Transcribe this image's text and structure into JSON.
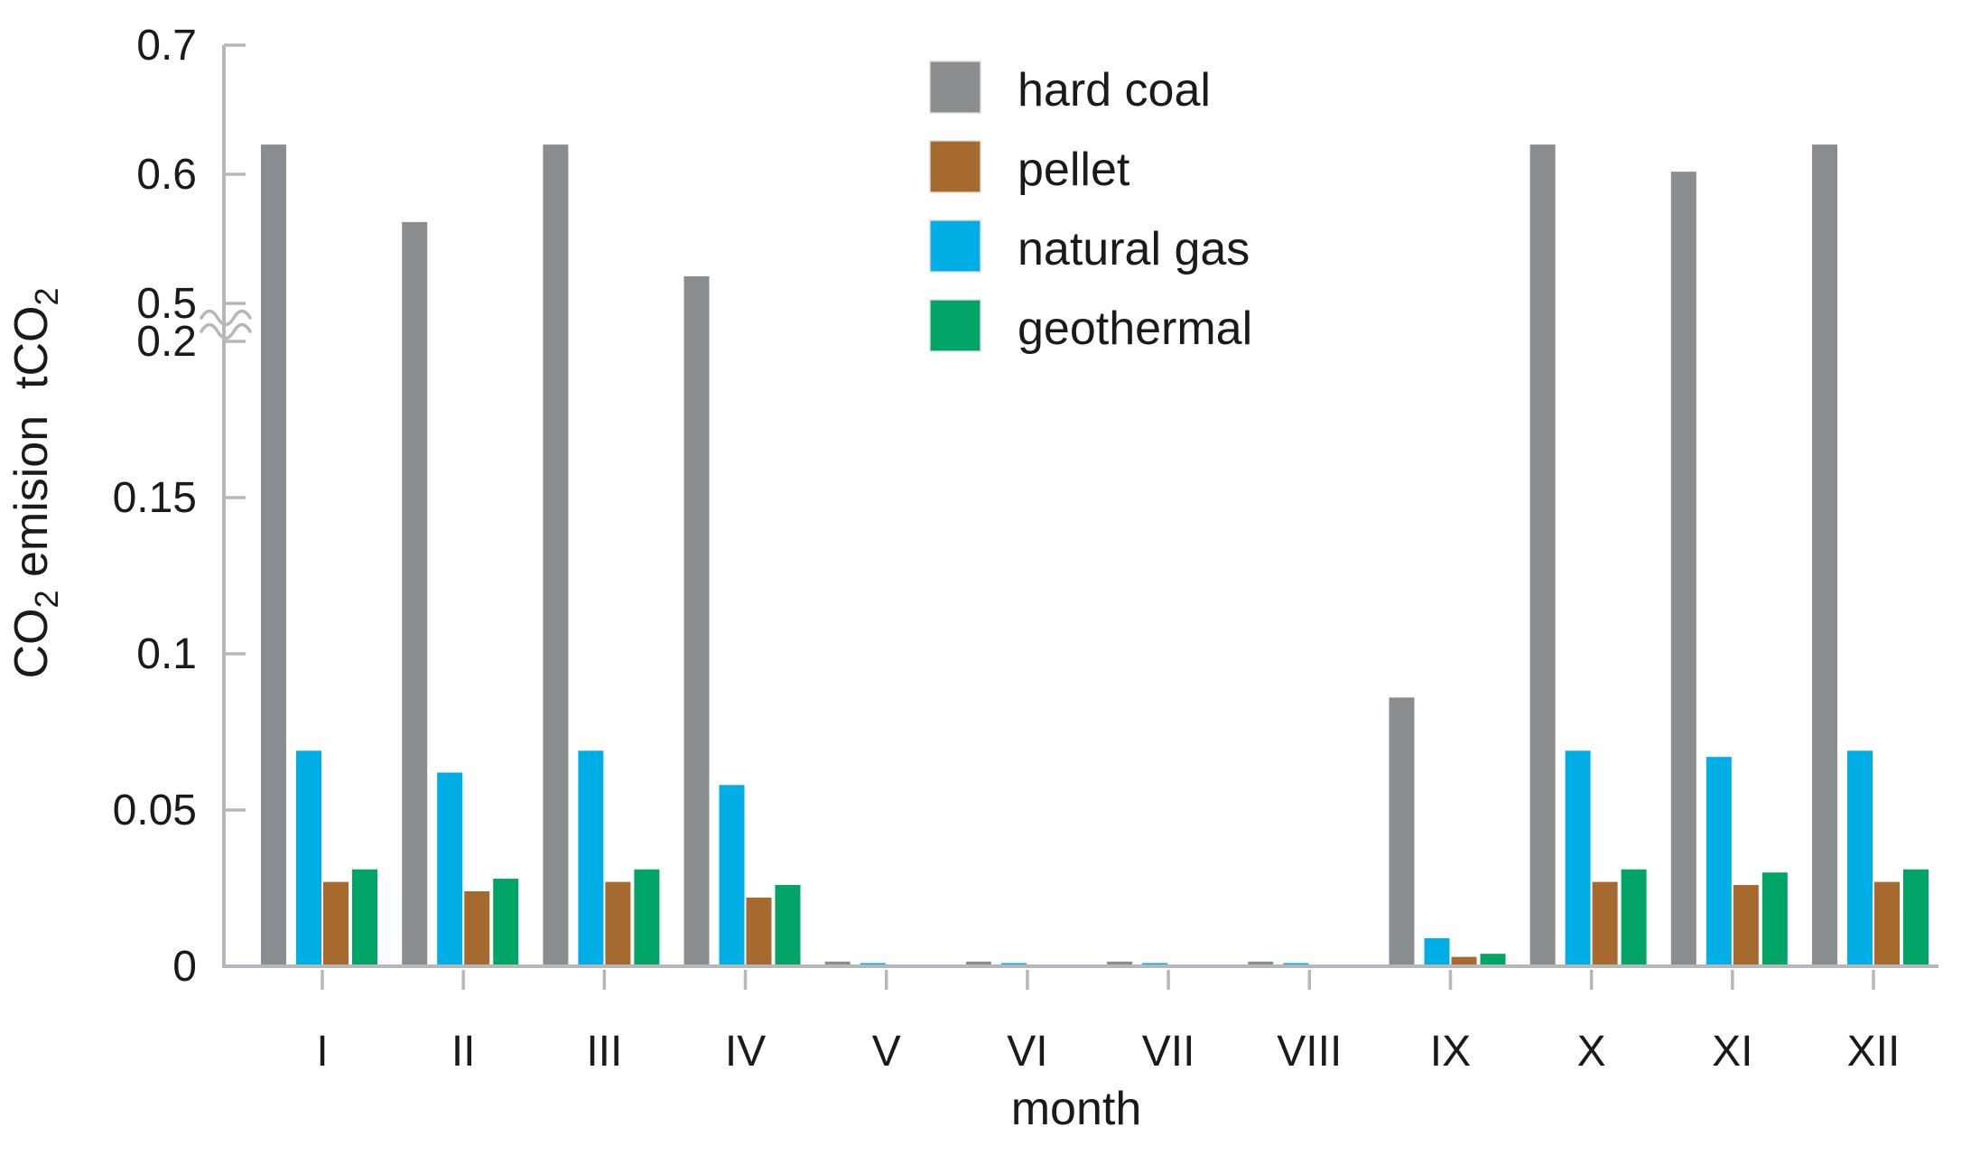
{
  "figure": {
    "background": "#ffffff",
    "text_color": "#1a1a1a",
    "axis_color": "#b5b8ba"
  },
  "chart_data": {
    "type": "bar",
    "title": "",
    "xlabel": "month",
    "ylabel": "CO2 emision tCO2",
    "ylabel_rich": [
      {
        "text": "CO",
        "sub": false
      },
      {
        "text": "2",
        "sub": true
      },
      {
        "text": " emision  tCO",
        "sub": false
      },
      {
        "text": "2",
        "sub": true
      }
    ],
    "categories": [
      "I",
      "II",
      "III",
      "IV",
      "V",
      "VI",
      "VII",
      "VIII",
      "IX",
      "X",
      "XI",
      "XII"
    ],
    "series": [
      {
        "name": "hard coal",
        "color": "#8a8d90",
        "values": [
          0.623,
          0.563,
          0.623,
          0.521,
          0.0015,
          0.0015,
          0.0015,
          0.0015,
          0.086,
          0.623,
          0.602,
          0.623
        ]
      },
      {
        "name": "pellet",
        "color": "#a66a2e",
        "values": [
          0.027,
          0.024,
          0.027,
          0.022,
          0.0005,
          0.0005,
          0.0005,
          0.0005,
          0.003,
          0.027,
          0.026,
          0.027
        ]
      },
      {
        "name": "natural gas",
        "color": "#00aee6",
        "values": [
          0.069,
          0.062,
          0.069,
          0.058,
          0.001,
          0.001,
          0.001,
          0.001,
          0.009,
          0.069,
          0.067,
          0.069
        ]
      },
      {
        "name": "geothermal",
        "color": "#00a466",
        "values": [
          0.031,
          0.028,
          0.031,
          0.026,
          0.0005,
          0.0005,
          0.0005,
          0.0005,
          0.004,
          0.031,
          0.03,
          0.031
        ]
      }
    ],
    "bar_order_left_to_right": [
      "hard coal",
      "natural gas",
      "pellet",
      "geothermal"
    ],
    "y_axis": {
      "broken": true,
      "break_between": [
        0.2,
        0.5
      ],
      "lower_ticks": [
        {
          "v": 0,
          "label": "0"
        },
        {
          "v": 0.05,
          "label": "0.05"
        },
        {
          "v": 0.1,
          "label": "0.1"
        },
        {
          "v": 0.15,
          "label": "0.15"
        },
        {
          "v": 0.2,
          "label": "0.2"
        }
      ],
      "upper_ticks": [
        {
          "v": 0.5,
          "label": "0.5"
        },
        {
          "v": 0.6,
          "label": "0.6"
        },
        {
          "v": 0.7,
          "label": "0.7"
        }
      ]
    },
    "legend": {
      "position": "top-center",
      "entries": [
        "hard coal",
        "pellet",
        "natural gas",
        "geothermal"
      ]
    }
  }
}
